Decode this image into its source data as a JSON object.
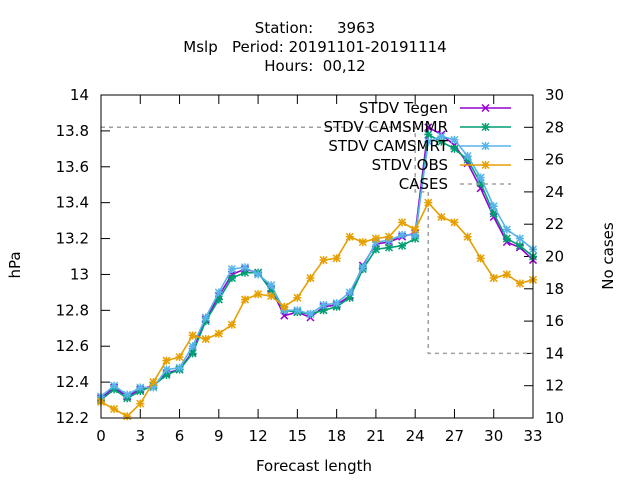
{
  "chart_data": {
    "type": "line",
    "title_lines": [
      "Station:     3963",
      "Mslp   Period: 20191101-20191114",
      "Hours:  00,12"
    ],
    "xlabel": "Forecast length",
    "ylabel": "hPa",
    "y2label": "No cases",
    "xlim": [
      0,
      33
    ],
    "ylim": [
      12.2,
      14
    ],
    "y2lim": [
      10,
      30
    ],
    "xticks": [
      0,
      3,
      6,
      9,
      12,
      15,
      18,
      21,
      24,
      27,
      30,
      33
    ],
    "xtick_labels": [
      "0",
      "3",
      "6",
      "9",
      "12",
      "15",
      "18",
      "21",
      "24",
      "27",
      "30",
      "33"
    ],
    "yticks": [
      12.2,
      12.4,
      12.6,
      12.8,
      13,
      13.2,
      13.4,
      13.6,
      13.8,
      14
    ],
    "ytick_labels": [
      "12.2",
      "12.4",
      "12.6",
      "12.8",
      "13",
      "13.2",
      "13.4",
      "13.6",
      "13.8",
      "14"
    ],
    "y2ticks": [
      10,
      12,
      14,
      16,
      18,
      20,
      22,
      24,
      26,
      28,
      30
    ],
    "y2tick_labels": [
      "10",
      "12",
      "14",
      "16",
      "18",
      "20",
      "22",
      "24",
      "26",
      "28",
      "30"
    ],
    "legend_position": "top-right",
    "x": [
      0,
      1,
      2,
      3,
      4,
      5,
      6,
      7,
      8,
      9,
      10,
      11,
      12,
      13,
      14,
      15,
      16,
      17,
      18,
      19,
      20,
      21,
      22,
      23,
      24,
      25,
      26,
      27,
      28,
      29,
      30,
      31,
      32,
      33
    ],
    "series": [
      {
        "name": "STDV Tegen",
        "color": "#9400d3",
        "marker": "x",
        "values": [
          12.31,
          12.37,
          12.32,
          12.36,
          12.38,
          12.45,
          12.47,
          12.57,
          12.75,
          12.88,
          13.0,
          13.03,
          13.01,
          12.92,
          12.77,
          12.79,
          12.76,
          12.82,
          12.83,
          12.88,
          13.05,
          13.17,
          13.18,
          13.21,
          13.23,
          13.82,
          13.78,
          13.72,
          13.62,
          13.48,
          13.32,
          13.18,
          13.15,
          13.08
        ]
      },
      {
        "name": "STDV CAMSMMR",
        "color": "#009e73",
        "marker": "asterisk",
        "values": [
          12.3,
          12.36,
          12.31,
          12.35,
          12.38,
          12.44,
          12.47,
          12.56,
          12.74,
          12.86,
          12.98,
          13.01,
          13.01,
          12.91,
          12.8,
          12.79,
          12.78,
          12.8,
          12.82,
          12.87,
          13.03,
          13.14,
          13.15,
          13.16,
          13.2,
          13.78,
          13.74,
          13.7,
          13.64,
          13.51,
          13.34,
          13.2,
          13.16,
          13.1
        ]
      },
      {
        "name": "STDV CAMSMRT",
        "color": "#56b4e9",
        "marker": "asterisk",
        "values": [
          12.32,
          12.38,
          12.33,
          12.37,
          12.37,
          12.47,
          12.48,
          12.6,
          12.76,
          12.9,
          13.03,
          13.04,
          13.0,
          12.94,
          12.8,
          12.8,
          12.78,
          12.83,
          12.84,
          12.9,
          13.04,
          13.18,
          13.19,
          13.22,
          13.22,
          13.74,
          13.77,
          13.75,
          13.66,
          13.54,
          13.38,
          13.25,
          13.2,
          13.14
        ]
      },
      {
        "name": "STDV OBS",
        "color": "#e69f00",
        "marker": "asterisk",
        "values": [
          12.29,
          12.25,
          12.21,
          12.28,
          12.4,
          12.52,
          12.54,
          12.66,
          12.64,
          12.67,
          12.72,
          12.86,
          12.89,
          12.88,
          12.82,
          12.87,
          12.98,
          13.08,
          13.09,
          13.21,
          13.18,
          13.2,
          13.21,
          13.29,
          13.25,
          13.4,
          13.32,
          13.29,
          13.21,
          13.09,
          12.98,
          13.0,
          12.95,
          12.97
        ]
      }
    ],
    "cases": {
      "name": "CASES",
      "color": "#a0a0a4",
      "style": "dashed",
      "axis": "y2",
      "x": [
        0,
        24,
        24,
        25,
        25,
        33
      ],
      "values": [
        28,
        28,
        24,
        24,
        14,
        14
      ]
    }
  }
}
